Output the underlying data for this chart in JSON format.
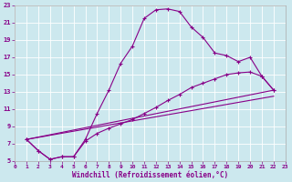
{
  "xlabel": "Windchill (Refroidissement éolien,°C)",
  "xlim": [
    0,
    23
  ],
  "ylim": [
    5,
    23
  ],
  "xticks": [
    0,
    1,
    2,
    3,
    4,
    5,
    6,
    7,
    8,
    9,
    10,
    11,
    12,
    13,
    14,
    15,
    16,
    17,
    18,
    19,
    20,
    21,
    22,
    23
  ],
  "yticks": [
    5,
    7,
    9,
    11,
    13,
    15,
    17,
    19,
    21,
    23
  ],
  "bg_color": "#cce8ee",
  "line_color": "#880088",
  "curve1_x": [
    1,
    2,
    3,
    4,
    5,
    6,
    7,
    8,
    9,
    10,
    11,
    12,
    13,
    14,
    15,
    16,
    17,
    18,
    19,
    20,
    21,
    22
  ],
  "curve1_y": [
    7.5,
    6.2,
    5.2,
    5.5,
    5.5,
    7.5,
    10.5,
    13.2,
    16.3,
    18.3,
    21.5,
    22.5,
    22.6,
    22.3,
    20.5,
    19.3,
    17.5,
    17.2,
    16.5,
    17.0,
    14.8,
    13.2
  ],
  "curve2_x": [
    1,
    2,
    3,
    4,
    5,
    6,
    7,
    8,
    9,
    10,
    11,
    12,
    13,
    14,
    15,
    16,
    17,
    18,
    19,
    20,
    21,
    22
  ],
  "curve2_y": [
    7.5,
    6.2,
    5.2,
    5.5,
    5.5,
    7.3,
    8.2,
    8.8,
    9.3,
    9.8,
    10.5,
    11.2,
    12.0,
    12.7,
    13.5,
    14.0,
    14.5,
    15.0,
    15.2,
    15.3,
    14.8,
    13.2
  ],
  "curve3_x": [
    1,
    22
  ],
  "curve3_y": [
    7.5,
    13.2
  ],
  "curve4_x": [
    1,
    22
  ],
  "curve4_y": [
    7.5,
    12.5
  ]
}
